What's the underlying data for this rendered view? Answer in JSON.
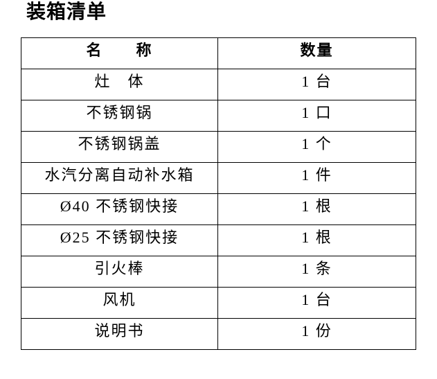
{
  "page": {
    "title": "装箱清单"
  },
  "table": {
    "headers": {
      "name": "名　　称",
      "qty": "数量"
    },
    "rows": [
      {
        "name": "灶　体",
        "qty": "1 台"
      },
      {
        "name": "不锈钢锅",
        "qty": "1 口"
      },
      {
        "name": "不锈钢锅盖",
        "qty": "1 个"
      },
      {
        "name": "水汽分离自动补水箱",
        "qty": "1 件"
      },
      {
        "name": "Ø40 不锈钢快接",
        "qty": "1 根"
      },
      {
        "name": "Ø25 不锈钢快接",
        "qty": "1 根"
      },
      {
        "name": "引火棒",
        "qty": "1 条"
      },
      {
        "name": "风机",
        "qty": "1 台"
      },
      {
        "name": "说明书",
        "qty": "1 份"
      }
    ],
    "colors": {
      "border": "#000000",
      "text": "#000000",
      "background": "#ffffff"
    }
  }
}
